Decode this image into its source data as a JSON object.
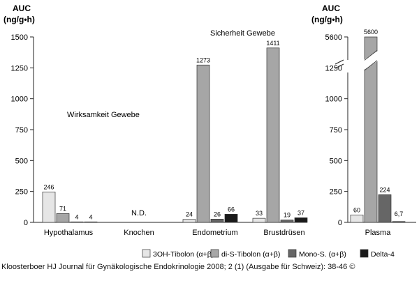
{
  "chart_data": {
    "type": "bar",
    "left_axis_title": [
      "AUC",
      "(ng/g•h)"
    ],
    "right_axis_title": [
      "AUC",
      "(ng/g•h)"
    ],
    "left_yticks": [
      "0",
      "250",
      "500",
      "750",
      "1000",
      "1250",
      "1500"
    ],
    "right_yticks": [
      "0",
      "250",
      "500",
      "750",
      "1000",
      "1250",
      "5600"
    ],
    "ylim": [
      0,
      1500
    ],
    "right_axis_break": {
      "lower": 1250,
      "upper": 5600
    },
    "categories": [
      "Hypothalamus",
      "Knochen",
      "Endometrium",
      "Brustdrüsen",
      "Plasma"
    ],
    "series": [
      {
        "name": "3OH-Tibolon (α+β)",
        "color": "#e6e6e6",
        "values": [
          246,
          null,
          24,
          33,
          60
        ]
      },
      {
        "name": "di-S-Tibolon (α+β)",
        "color": "#a6a6a6",
        "values": [
          71,
          null,
          1273,
          1411,
          5600
        ]
      },
      {
        "name": "Mono-S. (α+β)",
        "color": "#666666",
        "values": [
          4,
          null,
          26,
          19,
          224
        ]
      },
      {
        "name": "Delta-4",
        "color": "#1a1a1a",
        "values": [
          4,
          null,
          66,
          37,
          6.7
        ]
      }
    ],
    "value_labels": [
      [
        "246",
        "",
        "24",
        "33",
        "60"
      ],
      [
        "71",
        "",
        "1273",
        "1411",
        "5600"
      ],
      [
        "4",
        "",
        "26",
        "19",
        "224"
      ],
      [
        "4",
        "",
        "66",
        "37",
        "6,7"
      ]
    ],
    "annotations": {
      "nd": "N.D.",
      "wirksamkeit": "Wirksamkeit Gewebe",
      "sicherheit": "Sicherheit Gewebe"
    },
    "legend_position": "bottom-right"
  },
  "caption": "Kloosterboer HJ Journal für Gynäkologische Endokrinologie 2008; 2 (1) (Ausgabe für Schweiz): 38-46 ©"
}
